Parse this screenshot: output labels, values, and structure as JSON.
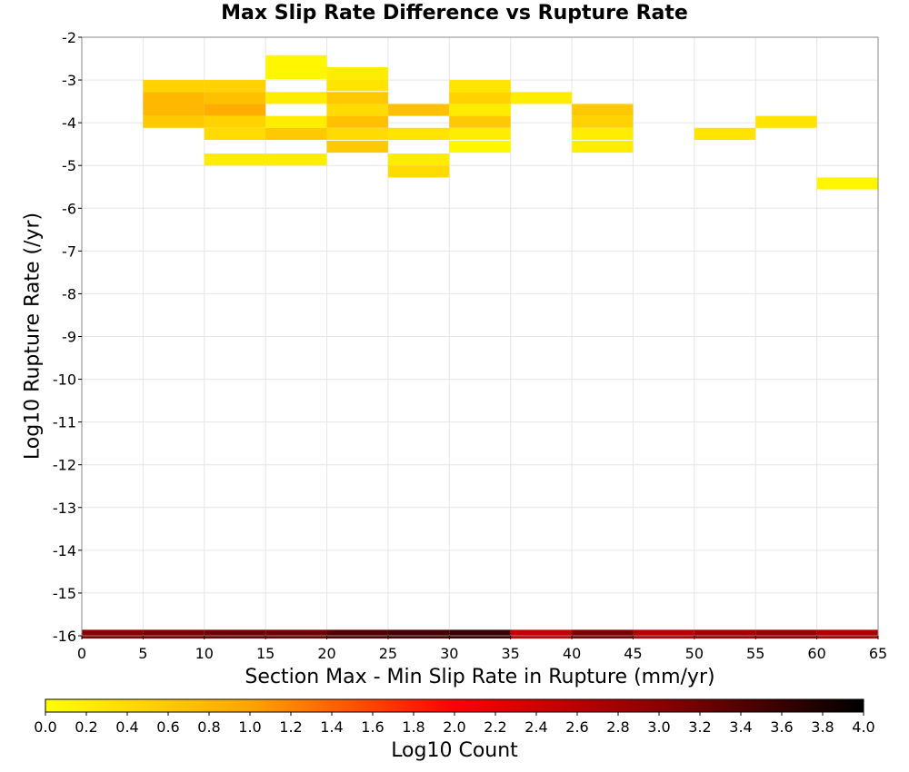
{
  "chart_data": {
    "type": "heatmap",
    "title": "Max Slip Rate Difference vs Rupture Rate",
    "xlabel": "Section Max - Min Slip Rate in Rupture (mm/yr)",
    "ylabel": "Log10 Rupture Rate (/yr)",
    "xlim": [
      0,
      65
    ],
    "ylim": [
      -16,
      -2
    ],
    "x_ticks": [
      "0",
      "5",
      "10",
      "15",
      "20",
      "25",
      "30",
      "35",
      "40",
      "45",
      "50",
      "55",
      "60",
      "65"
    ],
    "y_ticks": [
      "-2",
      "-3",
      "-4",
      "-5",
      "-6",
      "-7",
      "-8",
      "-9",
      "-10",
      "-11",
      "-12",
      "-13",
      "-14",
      "-15",
      "-16"
    ],
    "grid": true,
    "x_bin_width": 5,
    "y_bin_height": 0.28,
    "cells": [
      {
        "x": 5,
        "y": -3.0,
        "value": 0.5
      },
      {
        "x": 5,
        "y": -3.28,
        "value": 0.8
      },
      {
        "x": 5,
        "y": -3.56,
        "value": 0.8
      },
      {
        "x": 5,
        "y": -3.84,
        "value": 0.6
      },
      {
        "x": 10,
        "y": -3.0,
        "value": 0.5
      },
      {
        "x": 10,
        "y": -3.28,
        "value": 0.7
      },
      {
        "x": 10,
        "y": -3.56,
        "value": 0.9
      },
      {
        "x": 10,
        "y": -3.84,
        "value": 0.5
      },
      {
        "x": 10,
        "y": -4.12,
        "value": 0.4
      },
      {
        "x": 10,
        "y": -4.72,
        "value": 0.2
      },
      {
        "x": 15,
        "y": -2.42,
        "value": 0.1
      },
      {
        "x": 15,
        "y": -2.7,
        "value": 0.1
      },
      {
        "x": 15,
        "y": -3.28,
        "value": 0.2
      },
      {
        "x": 15,
        "y": -3.84,
        "value": 0.2
      },
      {
        "x": 15,
        "y": -4.12,
        "value": 0.6
      },
      {
        "x": 15,
        "y": -4.72,
        "value": 0.2
      },
      {
        "x": 20,
        "y": -2.7,
        "value": 0.2
      },
      {
        "x": 20,
        "y": -2.98,
        "value": 0.3
      },
      {
        "x": 20,
        "y": -3.28,
        "value": 0.6
      },
      {
        "x": 20,
        "y": -3.56,
        "value": 0.4
      },
      {
        "x": 20,
        "y": -3.84,
        "value": 0.7
      },
      {
        "x": 20,
        "y": -4.12,
        "value": 0.4
      },
      {
        "x": 20,
        "y": -4.42,
        "value": 0.6
      },
      {
        "x": 25,
        "y": -3.56,
        "value": 0.7
      },
      {
        "x": 25,
        "y": -4.12,
        "value": 0.3
      },
      {
        "x": 25,
        "y": -4.72,
        "value": 0.2
      },
      {
        "x": 25,
        "y": -5.0,
        "value": 0.4
      },
      {
        "x": 30,
        "y": -3.0,
        "value": 0.3
      },
      {
        "x": 30,
        "y": -3.28,
        "value": 0.5
      },
      {
        "x": 30,
        "y": -3.56,
        "value": 0.2
      },
      {
        "x": 30,
        "y": -3.84,
        "value": 0.6
      },
      {
        "x": 30,
        "y": -4.12,
        "value": 0.2
      },
      {
        "x": 30,
        "y": -4.42,
        "value": 0.1
      },
      {
        "x": 35,
        "y": -3.28,
        "value": 0.2
      },
      {
        "x": 40,
        "y": -3.56,
        "value": 0.6
      },
      {
        "x": 40,
        "y": -3.84,
        "value": 0.5
      },
      {
        "x": 40,
        "y": -4.12,
        "value": 0.2
      },
      {
        "x": 40,
        "y": -4.42,
        "value": 0.2
      },
      {
        "x": 50,
        "y": -4.12,
        "value": 0.3
      },
      {
        "x": 55,
        "y": -3.84,
        "value": 0.3
      },
      {
        "x": 60,
        "y": -5.28,
        "value": 0.1
      }
    ],
    "bottom_row": {
      "y": -16.0,
      "cells": [
        {
          "x": 0,
          "value": 3.0
        },
        {
          "x": 5,
          "value": 3.1
        },
        {
          "x": 10,
          "value": 3.2
        },
        {
          "x": 15,
          "value": 3.2
        },
        {
          "x": 20,
          "value": 3.4
        },
        {
          "x": 25,
          "value": 3.5
        },
        {
          "x": 30,
          "value": 3.6
        },
        {
          "x": 35,
          "value": 2.5
        },
        {
          "x": 40,
          "value": 3.1
        },
        {
          "x": 45,
          "value": 2.6
        },
        {
          "x": 50,
          "value": 2.8
        },
        {
          "x": 55,
          "value": 2.9
        },
        {
          "x": 60,
          "value": 2.7
        }
      ]
    },
    "colorbar": {
      "label": "Log10 Count",
      "range": [
        0,
        4
      ],
      "ticks": [
        "0.0",
        "0.2",
        "0.4",
        "0.6",
        "0.8",
        "1.0",
        "1.2",
        "1.4",
        "1.6",
        "1.8",
        "2.0",
        "2.2",
        "2.4",
        "2.6",
        "2.8",
        "3.0",
        "3.2",
        "3.4",
        "3.6",
        "3.8",
        "4.0"
      ],
      "colors": [
        "#ffff00",
        "#ffa500",
        "#ff0000",
        "#8b0000",
        "#000000"
      ]
    }
  }
}
